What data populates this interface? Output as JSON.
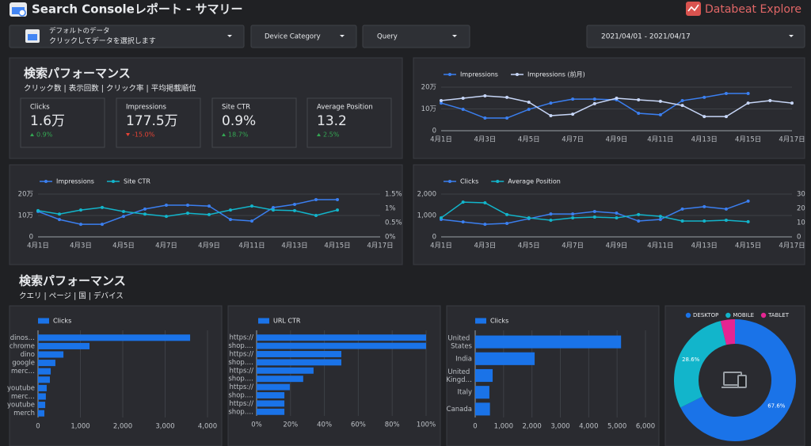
{
  "header": {
    "title": "Search Consoleレポート - サマリー",
    "brand": "Databeat Explore"
  },
  "controls": {
    "source_title": "デフォルトのデータ",
    "source_hint": "クリックしてデータを選択します",
    "filters": [
      "Device Category",
      "Query"
    ],
    "date_range": "2021/04/01 - 2021/04/17"
  },
  "sections": [
    {
      "title": "検索パフォーマンス",
      "subtitle": "クリック数 | 表示回数 | クリック率 | 平均掲載順位"
    },
    {
      "title": "検索パフォーマンス",
      "subtitle": "クエリ | ページ | 国 | デバイス"
    }
  ],
  "kpis": [
    {
      "label": "Clicks",
      "value": "1.6万",
      "change": "0.9%",
      "direction": "up"
    },
    {
      "label": "Impressions",
      "value": "177.5万",
      "change": "-15.0%",
      "direction": "down"
    },
    {
      "label": "Site CTR",
      "value": "0.9%",
      "change": "18.7%",
      "direction": "up"
    },
    {
      "label": "Average Position",
      "value": "13.2",
      "change": "2.5%",
      "direction": "up"
    }
  ],
  "chart_data": [
    {
      "type": "line",
      "legend": "top",
      "categories": [
        "4月1日",
        null,
        "4月3日",
        null,
        "4月5日",
        null,
        "4月7日",
        null,
        "4月9日",
        null,
        "4月11日",
        null,
        "4月13日",
        null,
        "4月15日",
        null,
        "4月17日"
      ],
      "series": [
        {
          "name": "Impressions",
          "color": "#3b7ff0",
          "values": [
            12.7,
            9.8,
            5.8,
            5.8,
            9.8,
            12.7,
            14.5,
            14.5,
            14.2,
            8,
            7.3,
            13.8,
            15.3,
            17.1,
            17.1,
            null,
            null
          ]
        },
        {
          "name": "Impressions (前月)",
          "color": "#c7d6f7",
          "values": [
            13.8,
            14.9,
            16,
            15.3,
            13.1,
            6.9,
            7.6,
            12.4,
            14.9,
            14.2,
            13.5,
            11.6,
            6.5,
            6.5,
            12.7,
            13.8,
            12.7
          ]
        }
      ],
      "ylim": [
        0,
        20
      ],
      "yticks": [
        0,
        {
          "value": 10,
          "label": "10万"
        },
        {
          "value": 20,
          "label": "20万"
        }
      ],
      "grid": true
    },
    {
      "type": "line",
      "legend": "top",
      "categories": [
        "4月1日",
        null,
        "4月3日",
        null,
        "4月5日",
        null,
        "4月7日",
        null,
        "4月9日",
        null,
        "4月11日",
        null,
        "4月13日",
        null,
        "4月15日",
        null,
        "4月17日"
      ],
      "series": [
        {
          "name": "Impressions",
          "color": "#3b7ff0",
          "values": [
            11.9,
            8.1,
            5.9,
            5.9,
            9.6,
            13,
            14.8,
            14.8,
            14.4,
            8.1,
            7.4,
            13.7,
            15.2,
            17.4,
            17.4,
            null,
            null
          ]
        },
        {
          "name": "Site CTR",
          "color": "#12b5cb",
          "axis": "y2",
          "values": [
            0.92,
            0.8,
            0.94,
            1.03,
            0.89,
            0.8,
            0.72,
            0.83,
            0.78,
            0.94,
            1.08,
            0.94,
            0.92,
            0.75,
            0.94,
            null,
            null
          ]
        }
      ],
      "ylim": [
        0,
        20
      ],
      "yticks": [
        0,
        {
          "value": 10,
          "label": "10万"
        },
        {
          "value": 20,
          "label": "20万"
        }
      ],
      "y2lim": [
        0,
        1.5
      ],
      "y2ticks": [
        {
          "value": 0,
          "label": "0%"
        },
        {
          "value": 0.5,
          "label": "0.5%"
        },
        {
          "value": 1,
          "label": "1%"
        },
        {
          "value": 1.5,
          "label": "1.5%"
        }
      ],
      "grid": true
    },
    {
      "type": "line",
      "legend": "top",
      "categories": [
        "4月1日",
        null,
        "4月3日",
        null,
        "4月5日",
        null,
        "4月7日",
        null,
        "4月9日",
        null,
        "4月11日",
        null,
        "4月13日",
        null,
        "4月15日",
        null,
        "4月17日"
      ],
      "series": [
        {
          "name": "Clicks",
          "color": "#3b7ff0",
          "values": [
            815,
            700,
            590,
            630,
            850,
            1070,
            1070,
            1185,
            1110,
            740,
            815,
            1300,
            1410,
            1300,
            1670,
            null,
            null
          ]
        },
        {
          "name": "Average Position",
          "color": "#12b5cb",
          "axis": "y2",
          "values": [
            13.3,
            24.4,
            23.9,
            15.6,
            13.3,
            11.7,
            13.3,
            13.9,
            13.3,
            15.6,
            14.4,
            11.1,
            11.1,
            11.7,
            10.6,
            null,
            null
          ]
        }
      ],
      "ylim": [
        0,
        2000
      ],
      "yticks": [
        0,
        {
          "value": 1000,
          "label": "1,000"
        },
        {
          "value": 2000,
          "label": "2,000"
        }
      ],
      "y2lim": [
        0,
        30
      ],
      "y2ticks": [
        0,
        10,
        20,
        30
      ],
      "grid": true
    },
    {
      "type": "bar",
      "orientation": "horizontal",
      "legend": "top",
      "categories": [
        "dinos…",
        "chrome",
        "dino",
        "google",
        "merc…",
        null,
        "youtube",
        "merc…",
        "youtube",
        "merch"
      ],
      "series": [
        {
          "name": "Clicks",
          "color": "#1a73e8",
          "values": [
            3590,
            1215,
            600,
            410,
            300,
            280,
            205,
            185,
            170,
            150
          ]
        }
      ],
      "xlim": [
        0,
        4000
      ],
      "xticks": [
        0,
        {
          "value": 1000,
          "label": "1,000"
        },
        {
          "value": 2000,
          "label": "2,000"
        },
        {
          "value": 3000,
          "label": "3,000"
        },
        {
          "value": 4000,
          "label": "4,000"
        }
      ],
      "grid": true
    },
    {
      "type": "bar",
      "orientation": "horizontal",
      "legend": "top",
      "categories": [
        "https://",
        "shop.…",
        "https://",
        "shop.…",
        "https://",
        "shop.…",
        "https://",
        "shop.…",
        "https://",
        "shop.…"
      ],
      "series": [
        {
          "name": "URL CTR",
          "color": "#1a73e8",
          "values": [
            100,
            100,
            50,
            50,
            33.6,
            27.5,
            19.6,
            16.4,
            16.4,
            16.4
          ]
        }
      ],
      "xlim": [
        0,
        100
      ],
      "xticks": [
        {
          "value": 0,
          "label": "0%"
        },
        {
          "value": 20,
          "label": "20%"
        },
        {
          "value": 40,
          "label": "40%"
        },
        {
          "value": 60,
          "label": "60%"
        },
        {
          "value": 80,
          "label": "80%"
        },
        {
          "value": 100,
          "label": "100%"
        }
      ],
      "grid": true
    },
    {
      "type": "bar",
      "orientation": "horizontal",
      "legend": "top",
      "categories": [
        "United States",
        "India",
        "United Kingd…",
        "Italy",
        "Canada"
      ],
      "series": [
        {
          "name": "Clicks",
          "color": "#1a73e8",
          "values": [
            5140,
            2095,
            615,
            500,
            520
          ]
        }
      ],
      "xlim": [
        0,
        6000
      ],
      "xticks": [
        0,
        {
          "value": 1000,
          "label": "1,000"
        },
        {
          "value": 2000,
          "label": "2,000"
        },
        {
          "value": 3000,
          "label": "3,000"
        },
        {
          "value": 4000,
          "label": "4,000"
        },
        {
          "value": 5000,
          "label": "5,000"
        },
        {
          "value": 6000,
          "label": "6,000"
        }
      ],
      "grid": true
    },
    {
      "type": "pie",
      "donut": true,
      "legend": "top",
      "categories": [
        "DESKTOP",
        "MOBILE",
        "TABLET"
      ],
      "values": [
        67.6,
        28.6,
        3.8
      ],
      "value_labels": [
        "67.6%",
        "28.6%",
        null
      ],
      "colors": [
        "#1a73e8",
        "#12b5cb",
        "#e52592"
      ]
    }
  ]
}
